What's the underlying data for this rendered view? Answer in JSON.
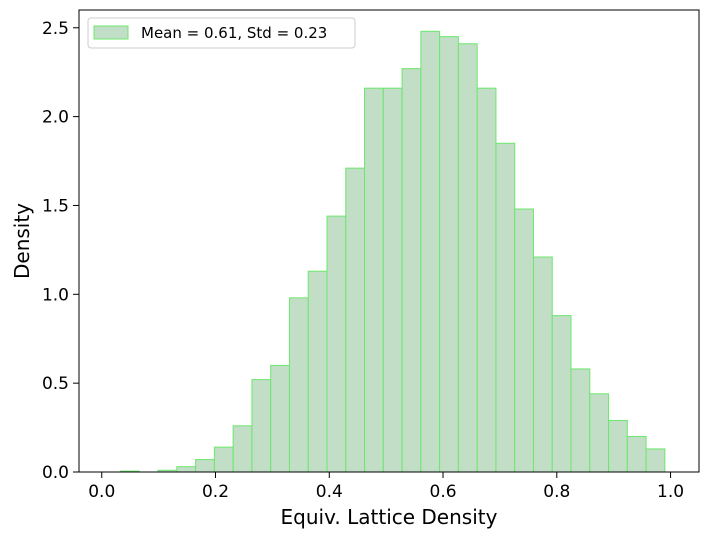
{
  "chart_data": {
    "type": "bar",
    "title": "",
    "xlabel": "Equiv. Lattice Density",
    "ylabel": "Density",
    "xlim": [
      -0.04,
      1.05
    ],
    "ylim": [
      0,
      2.6
    ],
    "xticks": [
      0.0,
      0.2,
      0.4,
      0.6,
      0.8,
      1.0
    ],
    "xtick_labels": [
      "0.0",
      "0.2",
      "0.4",
      "0.6",
      "0.8",
      "1.0"
    ],
    "yticks": [
      0.0,
      0.5,
      1.0,
      1.5,
      2.0,
      2.5
    ],
    "ytick_labels": [
      "0.0",
      "0.5",
      "1.0",
      "1.5",
      "2.0",
      "2.5"
    ],
    "grid": false,
    "legend_position": "top-left",
    "series": [
      {
        "name": "Mean = 0.61, Std = 0.23",
        "color": "#c2dec7",
        "edge_color": "#6be86b",
        "bins": [
          {
            "x0": 0.0,
            "x1": 0.033,
            "value": 0.0
          },
          {
            "x0": 0.033,
            "x1": 0.066,
            "value": 0.005
          },
          {
            "x0": 0.066,
            "x1": 0.099,
            "value": 0.0
          },
          {
            "x0": 0.099,
            "x1": 0.132,
            "value": 0.01
          },
          {
            "x0": 0.132,
            "x1": 0.165,
            "value": 0.03
          },
          {
            "x0": 0.165,
            "x1": 0.198,
            "value": 0.07
          },
          {
            "x0": 0.198,
            "x1": 0.231,
            "value": 0.14
          },
          {
            "x0": 0.231,
            "x1": 0.264,
            "value": 0.26
          },
          {
            "x0": 0.264,
            "x1": 0.297,
            "value": 0.52
          },
          {
            "x0": 0.297,
            "x1": 0.33,
            "value": 0.6
          },
          {
            "x0": 0.33,
            "x1": 0.363,
            "value": 0.98
          },
          {
            "x0": 0.363,
            "x1": 0.396,
            "value": 1.13
          },
          {
            "x0": 0.396,
            "x1": 0.429,
            "value": 1.44
          },
          {
            "x0": 0.429,
            "x1": 0.462,
            "value": 1.71
          },
          {
            "x0": 0.462,
            "x1": 0.495,
            "value": 2.16
          },
          {
            "x0": 0.495,
            "x1": 0.528,
            "value": 2.16
          },
          {
            "x0": 0.528,
            "x1": 0.561,
            "value": 2.27
          },
          {
            "x0": 0.561,
            "x1": 0.594,
            "value": 2.48
          },
          {
            "x0": 0.594,
            "x1": 0.627,
            "value": 2.45
          },
          {
            "x0": 0.627,
            "x1": 0.66,
            "value": 2.41
          },
          {
            "x0": 0.66,
            "x1": 0.693,
            "value": 2.16
          },
          {
            "x0": 0.693,
            "x1": 0.726,
            "value": 1.85
          },
          {
            "x0": 0.726,
            "x1": 0.759,
            "value": 1.48
          },
          {
            "x0": 0.759,
            "x1": 0.792,
            "value": 1.21
          },
          {
            "x0": 0.792,
            "x1": 0.825,
            "value": 0.88
          },
          {
            "x0": 0.825,
            "x1": 0.858,
            "value": 0.58
          },
          {
            "x0": 0.858,
            "x1": 0.891,
            "value": 0.44
          },
          {
            "x0": 0.891,
            "x1": 0.924,
            "value": 0.29
          },
          {
            "x0": 0.924,
            "x1": 0.957,
            "value": 0.2
          },
          {
            "x0": 0.957,
            "x1": 0.99,
            "value": 0.13
          }
        ]
      }
    ]
  }
}
